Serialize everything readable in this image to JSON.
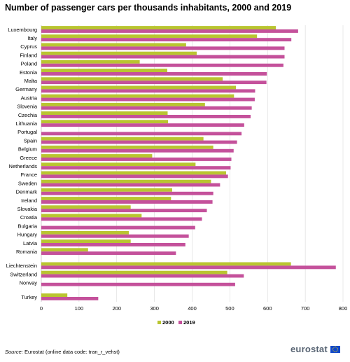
{
  "title": "Number of passenger cars per thousands inhabitants, 2000 and 2019",
  "source": {
    "prefix": "Source:",
    "text": "Eurostat (online data code: tran_r_vehst)"
  },
  "logo": {
    "text": "eurostat",
    "flag_icon": "eu-flag-icon"
  },
  "colors": {
    "series_2000": "#b9c530",
    "series_2019": "#c4519b",
    "grid": "#d9d9d9"
  },
  "chart_data": {
    "type": "bar",
    "orientation": "horizontal",
    "title": "Number of passenger cars per thousands inhabitants, 2000 and 2019",
    "categories": [
      "Luxembourg",
      "Italy",
      "Cyprus",
      "Finland",
      "Poland",
      "Estonia",
      "Malta",
      "Germany",
      "Austria",
      "Slovenia",
      "Czechia",
      "Lithuania",
      "Portugal",
      "Spain",
      "Belgium",
      "Greece",
      "Netherlands",
      "France",
      "Sweden",
      "Denmark",
      "Ireland",
      "Slovakia",
      "Croatia",
      "Bulgaria",
      "Hungary",
      "Latvia",
      "Romania",
      "Liechtenstein",
      "Switzerland",
      "Norway",
      "Turkey"
    ],
    "groups": [
      27,
      3,
      1
    ],
    "series": [
      {
        "name": "2000",
        "color": "#b9c530",
        "values": [
          622,
          572,
          384,
          412,
          261,
          334,
          481,
          516,
          511,
          434,
          335,
          336,
          null,
          430,
          456,
          294,
          409,
          490,
          450,
          347,
          344,
          237,
          266,
          null,
          232,
          237,
          124,
          662,
          493,
          null,
          69
        ]
      },
      {
        "name": "2019",
        "color": "#c4519b",
        "values": [
          681,
          663,
          645,
          645,
          642,
          598,
          597,
          567,
          566,
          558,
          555,
          538,
          531,
          519,
          510,
          504,
          502,
          495,
          474,
          456,
          454,
          439,
          426,
          408,
          391,
          382,
          357,
          781,
          537,
          514,
          151
        ]
      }
    ],
    "xlim": [
      0,
      800
    ],
    "xticks": [
      "0",
      "100",
      "200",
      "300",
      "400",
      "500",
      "600",
      "700",
      "800"
    ],
    "grid": true,
    "legend": {
      "position": "bottom-center",
      "entries": [
        "2000",
        "2019"
      ]
    }
  }
}
